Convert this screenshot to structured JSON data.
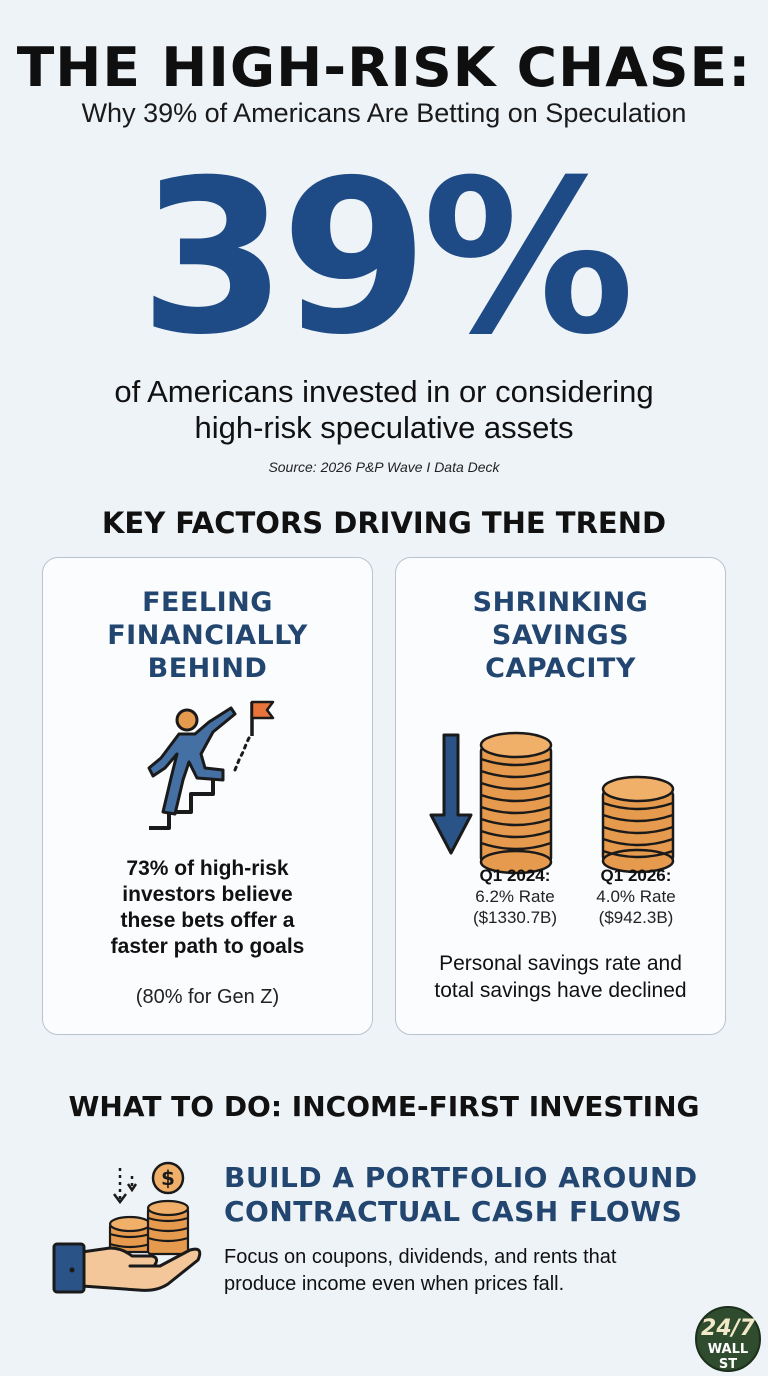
{
  "header": {
    "title": "THE HIGH-RISK CHASE:",
    "subtitle": "Why 39% of Americans Are Betting on Speculation"
  },
  "hero": {
    "stat": "39%",
    "description_line1": "of Americans invested in or considering",
    "description_line2": "high-risk speculative assets",
    "source": "Source: 2026 P&P Wave I Data Deck"
  },
  "factors": {
    "heading": "KEY FACTORS DRIVING THE TREND",
    "left_card": {
      "title_lines": [
        "FEELING",
        "FINANCIALLY",
        "BEHIND"
      ],
      "icon": "climbing-person-flag-icon",
      "body_lines": [
        "73% of high-risk",
        "investors believe",
        "these bets offer a",
        "faster path to goals"
      ],
      "note": "(80% for Gen Z)"
    },
    "right_card": {
      "title_lines": [
        "SHRINKING",
        "SAVINGS",
        "CAPACITY"
      ],
      "icons": [
        "down-arrow-icon",
        "coin-stack-icon"
      ],
      "q1_2024": {
        "label": "Q1 2024:",
        "rate": "6.2% Rate",
        "amount": "($1330.7B)"
      },
      "q1_2026": {
        "label": "Q1 2026:",
        "rate": "4.0% Rate",
        "amount": "($942.3B)"
      },
      "text_lines": [
        "Personal savings rate and",
        "total savings have declined"
      ]
    }
  },
  "action": {
    "heading": "WHAT TO DO: INCOME-FIRST INVESTING",
    "icon": "hand-coins-dollar-icon",
    "title_lines": [
      "BUILD A PORTFOLIO AROUND",
      "CONTRACTUAL CASH FLOWS"
    ],
    "text_lines": [
      "Focus on coupons, dividends, and rents that",
      "produce income even when prices fall."
    ]
  },
  "logo": {
    "top": "24/7",
    "bottom": "WALL ST"
  },
  "colors": {
    "background": "#eef3f8",
    "accent_blue": "#1e4a85",
    "card_title": "#22466f",
    "coin": "#e59a4e",
    "flag": "#e8743b"
  }
}
